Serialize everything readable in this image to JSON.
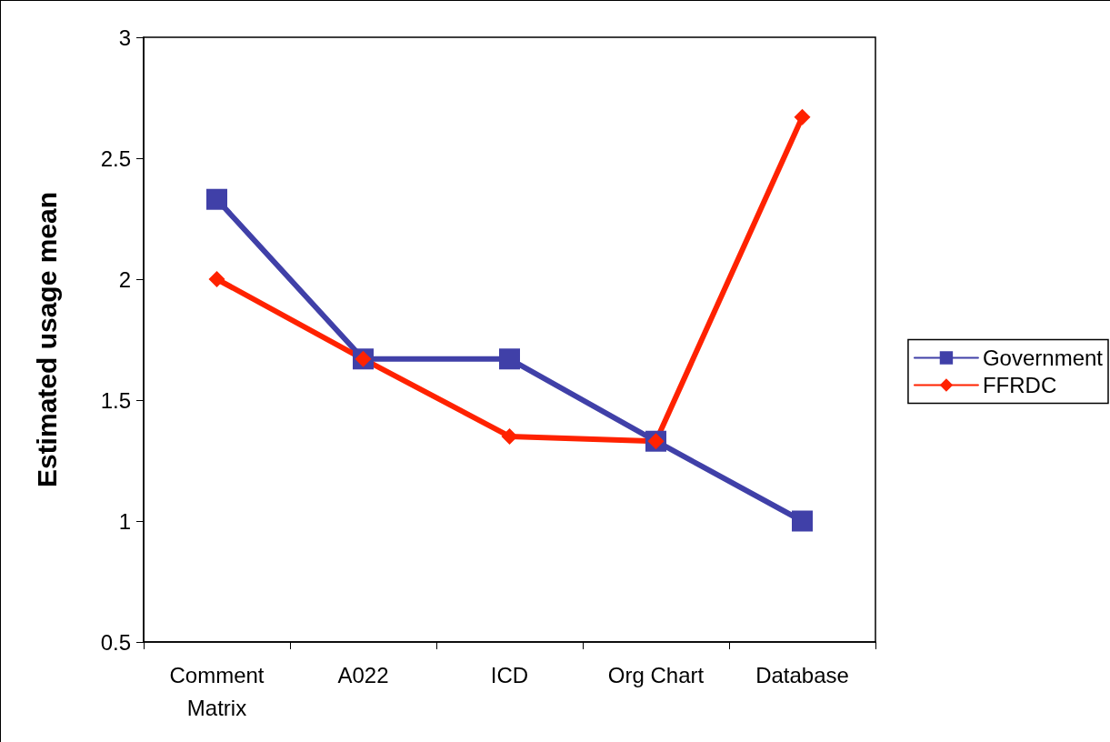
{
  "chart_data": {
    "type": "line",
    "ylabel": "Estimated usage mean",
    "categories": [
      "Comment\nMatrix",
      "A022",
      "ICD",
      "Org Chart",
      "Database"
    ],
    "series": [
      {
        "name": "Government",
        "color": "#4040a8",
        "marker": "square",
        "values": [
          2.33,
          1.67,
          1.67,
          1.33,
          1.0
        ]
      },
      {
        "name": "FFRDC",
        "color": "#ff2200",
        "marker": "diamond",
        "values": [
          2.0,
          1.67,
          1.35,
          1.33,
          2.67
        ]
      }
    ],
    "ylim": [
      0.5,
      3
    ],
    "yticks": [
      0.5,
      1,
      1.5,
      2,
      2.5,
      3
    ],
    "grid": false,
    "legend": "right"
  }
}
